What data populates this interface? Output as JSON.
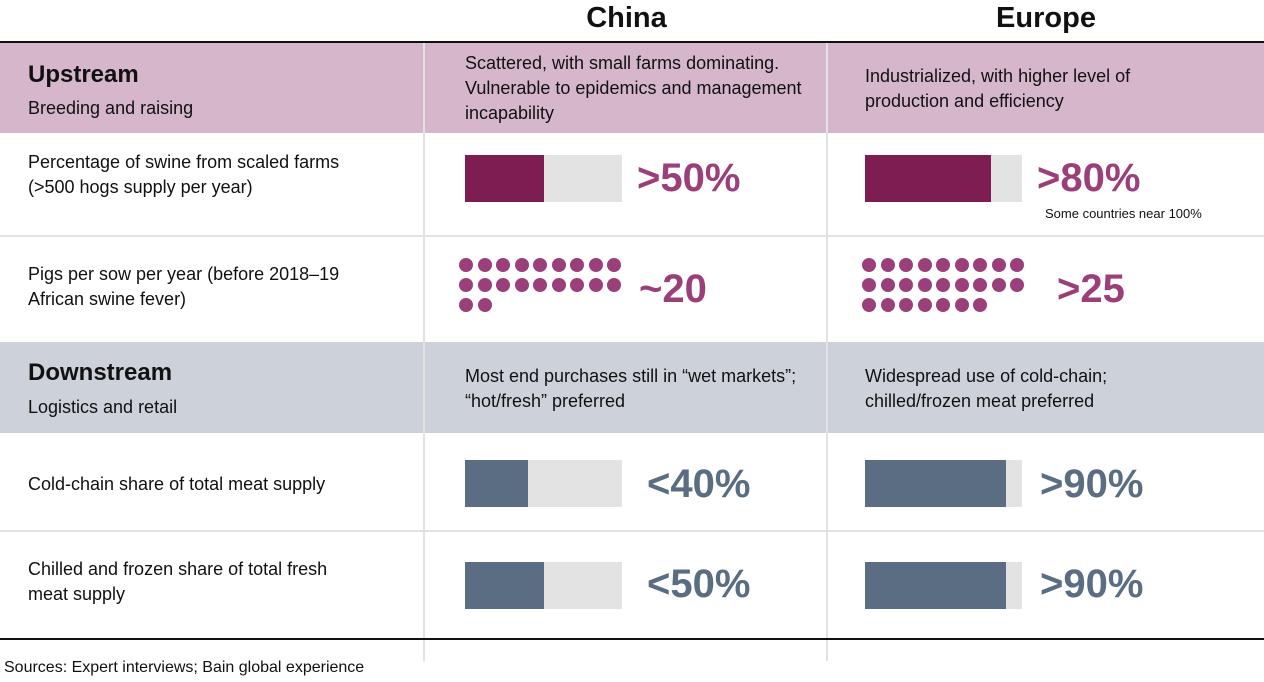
{
  "header": {
    "col1": "China",
    "col2": "Europe"
  },
  "upstream": {
    "title": "Upstream",
    "subtitle": "Breeding and raising",
    "china_desc": "Scattered, with small farms dominating. Vulnerable to epidemics and management incapability",
    "europe_desc": "Industrialized, with higher level of production and efficiency"
  },
  "downstream": {
    "title": "Downstream",
    "subtitle": "Logistics and retail",
    "china_desc": "Most end purchases still in “wet markets”; “hot/fresh” preferred",
    "europe_desc": "Widespread use of cold-chain; chilled/frozen meat preferred"
  },
  "rows": {
    "r1_label": "Percentage of swine from scaled farms (>500 hogs supply per year)",
    "r2_label": "Pigs per sow per year (before 2018–19 African swine fever)",
    "r3_label": "Cold-chain share of total meat supply",
    "r4_label": "Chilled and frozen share of total fresh meat supply"
  },
  "colors": {
    "upstream_accent": "#7d1d52",
    "downstream_accent": "#5a6d83",
    "bar_background": "#e3e3e3",
    "dot": "#9b3f7a"
  },
  "chart_data": [
    {
      "type": "bar",
      "title": "Percentage of swine from scaled farms (>500 hogs supply per year)",
      "categories": [
        "China",
        "Europe"
      ],
      "values": [
        50,
        80
      ],
      "value_labels": [
        ">50%",
        ">80%"
      ],
      "ylim": [
        0,
        100
      ],
      "note": "Some countries near 100%"
    },
    {
      "type": "scatter",
      "title": "Pigs per sow per year (before 2018–19 African swine fever)",
      "categories": [
        "China",
        "Europe"
      ],
      "values": [
        20,
        25
      ],
      "value_labels": [
        "~20",
        ">25"
      ]
    },
    {
      "type": "bar",
      "title": "Cold-chain share of total meat supply",
      "categories": [
        "China",
        "Europe"
      ],
      "values": [
        40,
        90
      ],
      "value_labels": [
        "<40%",
        ">90%"
      ],
      "ylim": [
        0,
        100
      ]
    },
    {
      "type": "bar",
      "title": "Chilled and frozen share of total fresh meat supply",
      "categories": [
        "China",
        "Europe"
      ],
      "values": [
        50,
        90
      ],
      "value_labels": [
        "<50%",
        ">90%"
      ],
      "ylim": [
        0,
        100
      ]
    }
  ],
  "footer": "Sources: Expert interviews; Bain global experience"
}
